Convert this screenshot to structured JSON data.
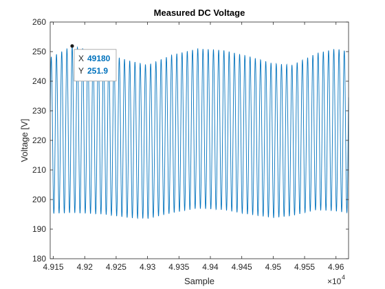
{
  "chart_data": {
    "type": "line",
    "title": "Measured DC Voltage",
    "xlabel": "Sample",
    "ylabel": "Voltage [V]",
    "x_exponent_label": "×10",
    "x_exponent_power": "4",
    "xlim": [
      49145,
      49620
    ],
    "ylim": [
      180,
      260
    ],
    "x_ticks": [
      49150,
      49200,
      49250,
      49300,
      49350,
      49400,
      49450,
      49500,
      49550,
      49600
    ],
    "x_tick_labels": [
      "4.915",
      "4.92",
      "4.925",
      "4.93",
      "4.935",
      "4.94",
      "4.945",
      "4.95",
      "4.955",
      "4.96"
    ],
    "y_ticks": [
      180,
      190,
      200,
      210,
      220,
      230,
      240,
      250,
      260
    ],
    "y_tick_labels": [
      "180",
      "190",
      "200",
      "210",
      "220",
      "230",
      "240",
      "250",
      "260"
    ],
    "grid": false,
    "line_color": "#0072BD",
    "series": [
      {
        "description": "Oscillating voltage: about 57 cycles across the visible window, swinging roughly between 193 and 252 V with a slow amplitude envelope",
        "period_samples": 8.33,
        "mean": 222.75,
        "envelope_points": [
          {
            "x": 49145,
            "min": 195.2,
            "max": 248.0
          },
          {
            "x": 49180,
            "min": 195.5,
            "max": 251.9
          },
          {
            "x": 49230,
            "min": 195.0,
            "max": 249.5
          },
          {
            "x": 49270,
            "min": 193.8,
            "max": 247.0
          },
          {
            "x": 49300,
            "min": 193.5,
            "max": 245.5
          },
          {
            "x": 49340,
            "min": 195.5,
            "max": 249.0
          },
          {
            "x": 49380,
            "min": 197.0,
            "max": 251.0
          },
          {
            "x": 49420,
            "min": 196.5,
            "max": 250.5
          },
          {
            "x": 49460,
            "min": 195.0,
            "max": 248.5
          },
          {
            "x": 49500,
            "min": 193.8,
            "max": 246.0
          },
          {
            "x": 49530,
            "min": 194.5,
            "max": 245.5
          },
          {
            "x": 49570,
            "min": 196.5,
            "max": 249.5
          },
          {
            "x": 49600,
            "min": 196.0,
            "max": 251.0
          },
          {
            "x": 49620,
            "min": 195.5,
            "max": 250.0
          }
        ]
      }
    ],
    "datatip": {
      "x_label": "X",
      "x_value": "49180",
      "y_label": "Y",
      "y_value": "251.9",
      "point": {
        "x": 49180,
        "y": 251.9
      }
    }
  }
}
